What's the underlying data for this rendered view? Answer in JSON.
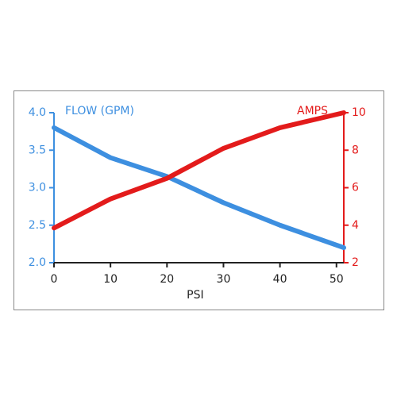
{
  "chart_data": {
    "type": "line",
    "xlabel": "PSI",
    "x": [
      0,
      10,
      20,
      30,
      40,
      51.3
    ],
    "xlim": [
      0,
      51.3
    ],
    "xticks": [
      0,
      10,
      20,
      30,
      40,
      50
    ],
    "ylim": [
      2,
      4
    ],
    "yticks": [
      {
        "value": 2,
        "label": "2.0"
      },
      {
        "value": 2.5,
        "label": "2.5"
      },
      {
        "value": 3,
        "label": "3.0"
      },
      {
        "value": 3.5,
        "label": "3.5"
      },
      {
        "value": 4,
        "label": "4.0"
      }
    ],
    "y2lim": [
      2,
      10
    ],
    "y2ticks": [
      2,
      4,
      6,
      8,
      10
    ],
    "grid": false,
    "series": [
      {
        "name": "FLOW (GPM)",
        "color": "#3d8fe0",
        "values": [
          3.8,
          3.4,
          3.15,
          2.8,
          2.5,
          2.2
        ]
      },
      {
        "name": "AMPS",
        "color": "#e31b1b",
        "axis": "y2",
        "values": [
          3.85,
          5.4,
          6.5,
          8.1,
          9.2,
          10
        ]
      }
    ]
  }
}
